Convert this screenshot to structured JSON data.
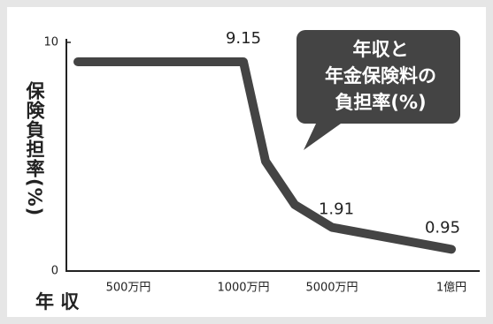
{
  "chart_data": {
    "type": "line",
    "y_label": "保険負担率(%)",
    "x_label": "年 収",
    "callout": [
      "年収と",
      "年金保険料の",
      "負担率(%)"
    ],
    "categories": [
      null,
      "500万円",
      "1000万円",
      null,
      null,
      "5000万円",
      "1億円"
    ],
    "values": [
      9.15,
      9.15,
      9.15,
      4.8,
      2.9,
      1.91,
      0.95
    ],
    "value_labels": [
      null,
      null,
      "9.15",
      null,
      null,
      "1.91",
      "0.95"
    ],
    "color": "#444444",
    "ylim": [
      0,
      10
    ],
    "yticks": [
      0,
      10
    ]
  }
}
